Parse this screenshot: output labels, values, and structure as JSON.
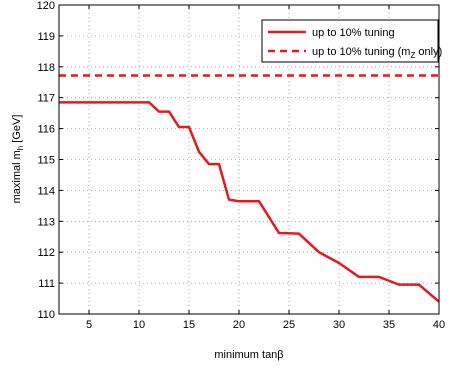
{
  "chart_data": {
    "type": "line",
    "xlabel": "minimum tanβ",
    "ylabel": {
      "main": "maximal m",
      "sub": "h",
      "unit": " [GeV]"
    },
    "xlim": [
      2,
      40
    ],
    "ylim": [
      110,
      120
    ],
    "xticks": [
      5,
      10,
      15,
      20,
      25,
      30,
      35,
      40
    ],
    "yticks": [
      110,
      111,
      112,
      113,
      114,
      115,
      116,
      117,
      118,
      119,
      120
    ],
    "grid": true,
    "legend": {
      "placement": "top-right",
      "entries": [
        {
          "text": "up to 10% tuning",
          "style": "solid"
        },
        {
          "prefix": "up to 10% tuning (m",
          "sub": "Z",
          "suffix": " only)",
          "style": "dashed"
        }
      ]
    },
    "series": [
      {
        "style": "solid",
        "color": "#e41a1c",
        "x": [
          2,
          11,
          12,
          13,
          14,
          15,
          16,
          17,
          18,
          19,
          20,
          22,
          24,
          26,
          28,
          30,
          32,
          34,
          36,
          38,
          40
        ],
        "y": [
          116.85,
          116.85,
          116.55,
          116.55,
          116.05,
          116.05,
          115.25,
          114.85,
          114.85,
          113.7,
          113.65,
          113.65,
          112.62,
          112.6,
          112.0,
          111.65,
          111.2,
          111.2,
          110.95,
          110.95,
          110.4
        ]
      },
      {
        "style": "dashed",
        "color": "#e41a1c",
        "x": [
          2,
          40
        ],
        "y": [
          117.72,
          117.72
        ]
      }
    ]
  }
}
